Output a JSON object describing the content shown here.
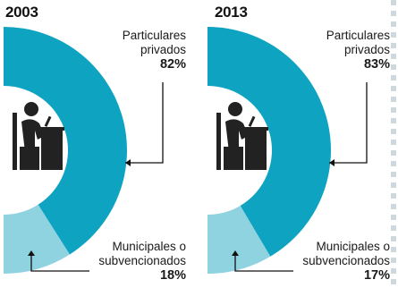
{
  "colors": {
    "particulares": "#0fa3c2",
    "municipales": "#8fd3e0",
    "icon": "#222222",
    "leader": "#111111"
  },
  "chart_data": [
    {
      "type": "pie",
      "title": "2003",
      "slices": [
        {
          "label_line1": "Particulares",
          "label_line2": "privados",
          "value": 82,
          "display": "82%"
        },
        {
          "label_line1": "Municipales o",
          "label_line2": "subvencionados",
          "value": 18,
          "display": "18%"
        }
      ]
    },
    {
      "type": "pie",
      "title": "2013",
      "slices": [
        {
          "label_line1": "Particulares",
          "label_line2": "privados",
          "value": 83,
          "display": "83%"
        },
        {
          "label_line1": "Municipales o",
          "label_line2": "subvencionados",
          "value": 17,
          "display": "17%"
        }
      ]
    }
  ]
}
